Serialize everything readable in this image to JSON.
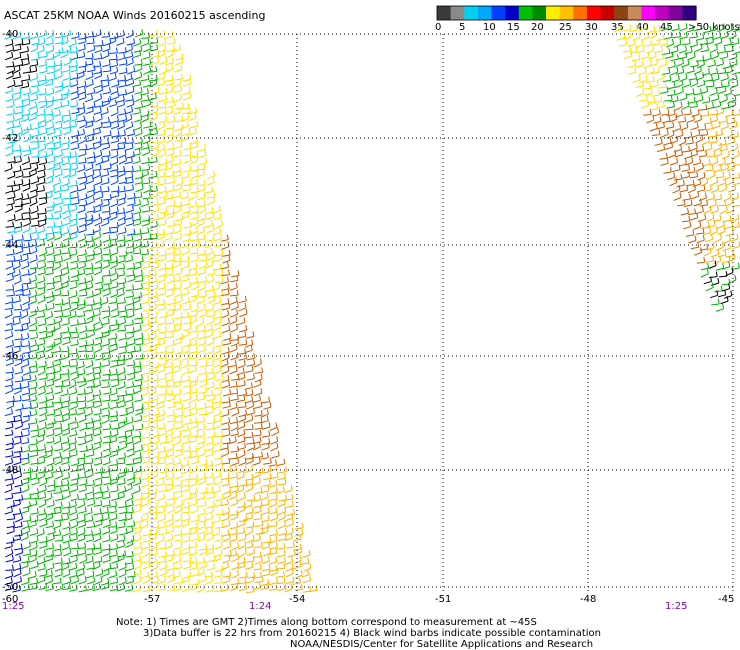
{
  "title": "ASCAT 25KM NOAA Winds 20160215 ascending",
  "legend": {
    "colors": [
      "#3a3a3a",
      "#8a8a8a",
      "#00d0f0",
      "#00a8f8",
      "#0040ff",
      "#0000c8",
      "#00c000",
      "#008c00",
      "#ffee00",
      "#ffc000",
      "#ff7000",
      "#ff0000",
      "#c80000",
      "#8b4513",
      "#c88a5a",
      "#ff00ff",
      "#c000c0",
      "#8000a0",
      "#300080"
    ],
    "tick_labels": [
      "0",
      "5",
      "10",
      "15",
      "20",
      "25",
      "30",
      "35",
      "40",
      "45",
      ">50 knots"
    ]
  },
  "lat_labels": [
    "-40",
    "-42",
    "-44",
    "-46",
    "-48",
    "-50"
  ],
  "lon_labels": [
    "-60",
    "-57",
    "-54",
    "-51",
    "-48",
    "-45"
  ],
  "time_labels": [
    "1:25",
    "1:24",
    "1:25"
  ],
  "notes": [
    "Note: 1) Times are GMT 2)Times along bottom correspond to measurement at ~45S",
    "3)Data buffer is 22 hrs from 20160215 4) Black wind barbs indicate possible contamination",
    "NOAA/NESDIS/Center for Satellite Applications and Research"
  ],
  "speed_colors": {
    "black": "#000000",
    "cyan": "#00d0f0",
    "blue": "#0040ff",
    "navy": "#0000c8",
    "green": "#00b000",
    "yellow": "#ffe000",
    "orange": "#ffb000",
    "brown": "#c85a00"
  }
}
